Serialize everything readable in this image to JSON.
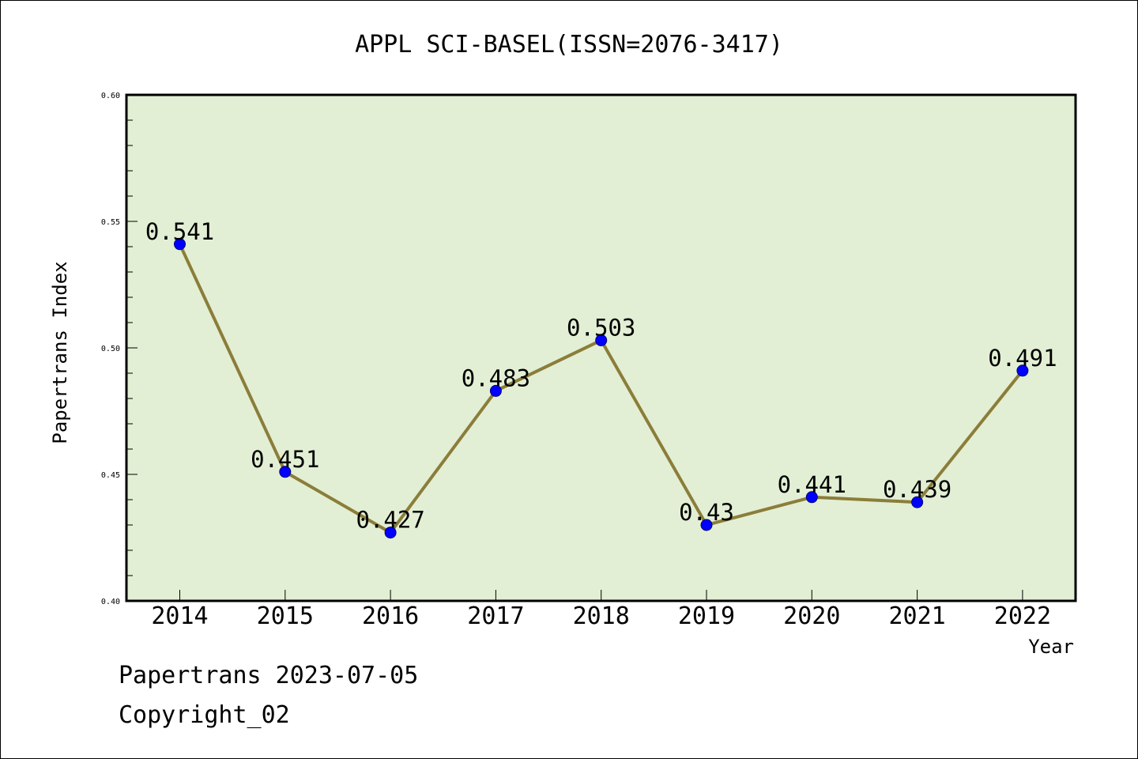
{
  "chart_data": {
    "type": "line",
    "title": "APPL SCI-BASEL(ISSN=2076-3417)",
    "xlabel": "Year",
    "ylabel": "Papertrans Index",
    "categories": [
      "2014",
      "2015",
      "2016",
      "2017",
      "2018",
      "2019",
      "2020",
      "2021",
      "2022"
    ],
    "series": [
      {
        "values": [
          0.541,
          0.451,
          0.427,
          0.483,
          0.503,
          0.43,
          0.441,
          0.439,
          0.491
        ],
        "labels": [
          "0.541",
          "0.451",
          "0.427",
          "0.483",
          "0.503",
          "0.43",
          "0.441",
          "0.439",
          "0.491"
        ]
      }
    ],
    "ylim": [
      0.4,
      0.6
    ],
    "yticks": [
      "0.40",
      "0.45",
      "0.50",
      "0.55",
      "0.60"
    ],
    "ytick_values": [
      0.4,
      0.45,
      0.5,
      0.55,
      0.6
    ],
    "grid": false,
    "colors": {
      "plot_background": "#e2efd4",
      "line": "#8b7d3a",
      "marker": "#0000ff"
    }
  },
  "footer": {
    "line1": "Papertrans 2023-07-05",
    "line2": "Copyright_02"
  }
}
